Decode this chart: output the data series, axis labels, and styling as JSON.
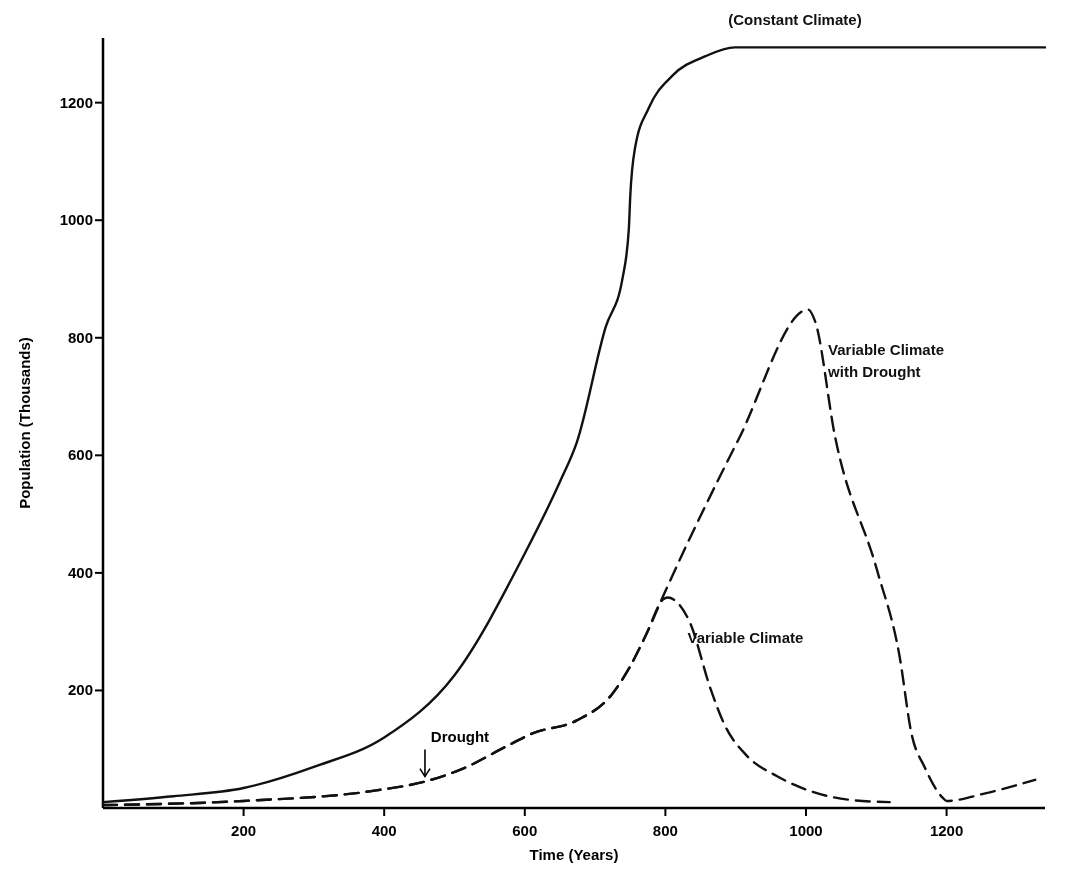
{
  "chart_data": {
    "type": "line",
    "xlabel": "Time (Years)",
    "ylabel": "Population (Thousands)",
    "xlim": [
      0,
      1340
    ],
    "ylim": [
      0,
      1310
    ],
    "xticks": [
      200,
      400,
      600,
      800,
      1000,
      1200
    ],
    "yticks": [
      200,
      400,
      600,
      800,
      1000,
      1200
    ],
    "grid": false,
    "marker": "none",
    "annotations": [
      {
        "text": "Drought",
        "x": 458,
        "y": 45
      }
    ],
    "series": [
      {
        "name": "(Constant Climate)",
        "color": "#111111",
        "line_style": "solid",
        "x": [
          0,
          100,
          200,
          300,
          400,
          500,
          600,
          650,
          674,
          715,
          739,
          748,
          750,
          757,
          776,
          810,
          857,
          899,
          1340
        ],
        "values": [
          10,
          20,
          34,
          70,
          120,
          226,
          433,
          555,
          622,
          818,
          901,
          985,
          1040,
          1124,
          1190,
          1246,
          1279,
          1294,
          1294
        ]
      },
      {
        "name": "Variable Climate with Drought",
        "color": "#111111",
        "line_style": "dashed",
        "x": [
          0,
          200,
          389,
          458,
          512,
          574,
          611,
          674,
          723,
          748,
          773,
          797,
          904,
          1003,
          1013,
          1041,
          1101,
          1133,
          1150,
          1169,
          1194,
          1200,
          1255,
          1326
        ],
        "values": [
          5,
          12,
          30,
          45,
          67,
          105,
          127,
          149,
          192,
          237,
          296,
          361,
          627,
          848,
          828,
          634,
          405,
          259,
          127,
          69,
          18,
          12,
          25,
          48
        ]
      },
      {
        "name": "Variable Climate",
        "color": "#111111",
        "line_style": "dashed",
        "x": [
          0,
          200,
          389,
          458,
          512,
          574,
          611,
          674,
          723,
          748,
          773,
          797,
          803,
          834,
          865,
          884,
          915,
          959,
          1008,
          1069,
          1119
        ],
        "values": [
          5,
          12,
          30,
          45,
          67,
          105,
          127,
          149,
          192,
          237,
          296,
          355,
          358,
          318,
          200,
          142,
          90,
          54,
          28,
          13,
          10
        ]
      }
    ]
  }
}
